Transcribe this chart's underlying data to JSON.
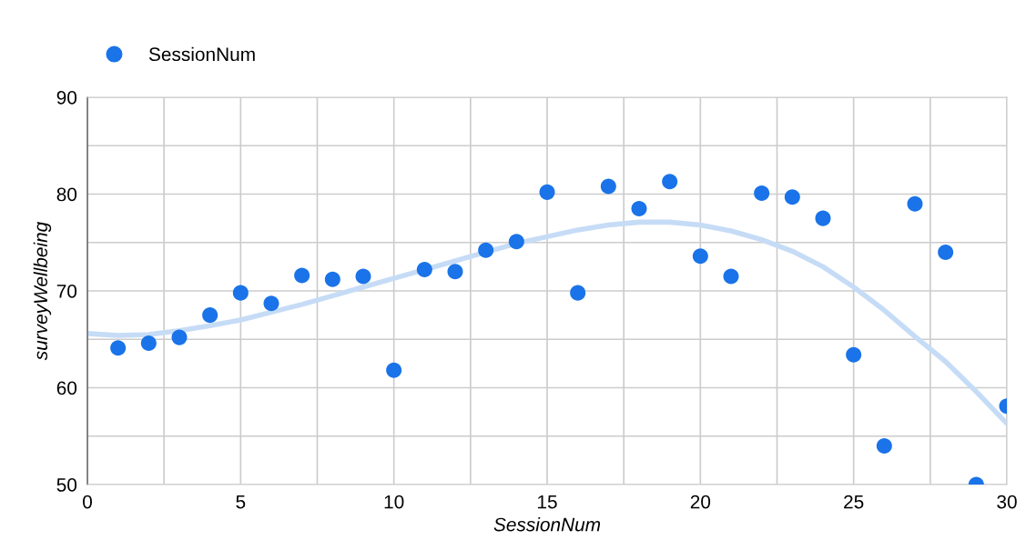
{
  "chart_data": {
    "type": "scatter",
    "xlabel": "SessionNum",
    "ylabel": "surveyWellbeing",
    "series": [
      {
        "name": "SessionNum",
        "color": "#1a73e8",
        "marker": "circle",
        "x": [
          1,
          2,
          3,
          4,
          5,
          6,
          7,
          8,
          9,
          10,
          11,
          12,
          13,
          14,
          15,
          16,
          17,
          18,
          19,
          20,
          21,
          22,
          23,
          24,
          25,
          26,
          27,
          28,
          29,
          30
        ],
        "values": [
          64.1,
          64.6,
          65.2,
          67.5,
          69.8,
          68.7,
          71.6,
          71.2,
          71.5,
          61.8,
          72.2,
          72.0,
          74.2,
          75.1,
          80.2,
          69.8,
          80.8,
          78.5,
          81.3,
          73.6,
          71.5,
          80.1,
          79.7,
          77.5,
          63.4,
          54.0,
          79.0,
          74.0,
          50.0,
          58.1
        ]
      },
      {
        "type": "line",
        "marker": "none",
        "color": "#c6dcf6",
        "x": [
          0,
          1,
          2,
          3,
          4,
          5,
          6,
          7,
          8,
          9,
          10,
          11,
          12,
          13,
          14,
          15,
          16,
          17,
          18,
          19,
          20,
          21,
          22,
          23,
          24,
          25,
          26,
          27,
          28,
          29,
          30
        ],
        "values": [
          65.6,
          65.4,
          65.5,
          65.9,
          66.4,
          67.0,
          67.8,
          68.6,
          69.5,
          70.4,
          71.3,
          72.2,
          73.1,
          74.0,
          74.9,
          75.6,
          76.3,
          76.8,
          77.1,
          77.1,
          76.8,
          76.2,
          75.3,
          74.1,
          72.5,
          70.4,
          68.0,
          65.3,
          62.7,
          59.6,
          56.3
        ]
      }
    ],
    "xlim": [
      0,
      30
    ],
    "xticks": [
      0,
      {
        "value": 2.5,
        "label": null
      },
      5,
      {
        "value": 7.5,
        "label": null
      },
      10,
      {
        "value": 12.5,
        "label": null
      },
      15,
      {
        "value": 17.5,
        "label": null
      },
      20,
      {
        "value": 22.5,
        "label": null
      },
      25,
      {
        "value": 27.5,
        "label": null
      },
      30
    ],
    "ylim": [
      50,
      90
    ],
    "yticks": [
      50,
      {
        "value": 55,
        "label": null
      },
      60,
      {
        "value": 65,
        "label": null
      },
      70,
      {
        "value": 75,
        "label": null
      },
      80,
      {
        "value": 85,
        "label": null
      },
      90
    ],
    "grid": true,
    "legend": "top left"
  }
}
